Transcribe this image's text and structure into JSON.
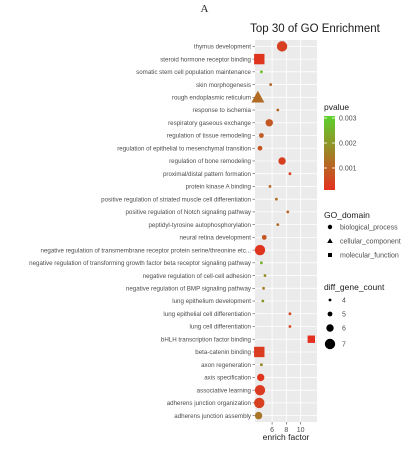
{
  "panel_label": "A",
  "chart_data": {
    "type": "scatter",
    "title": "Top 30 of GO Enrichment",
    "xlabel": "enrich factor",
    "ylabel": "",
    "xlim": [
      3.6,
      12.3
    ],
    "xticks": [
      6,
      8,
      10
    ],
    "grid": true,
    "legend_placement": "right",
    "terms": [
      {
        "term": "thymus development",
        "x": 7.4,
        "pvalue": 0.0004,
        "domain": "biological_process",
        "count": 7
      },
      {
        "term": "steroid hormone receptor binding",
        "x": 4.2,
        "pvalue": 0.0002,
        "domain": "molecular_function",
        "count": 7
      },
      {
        "term": "somatic stem cell population maintenance",
        "x": 4.5,
        "pvalue": 0.0028,
        "domain": "biological_process",
        "count": 4
      },
      {
        "term": "skin morphogenesis",
        "x": 5.8,
        "pvalue": 0.0011,
        "domain": "biological_process",
        "count": 4
      },
      {
        "term": "rough endoplasmic reticulum",
        "x": 4.0,
        "pvalue": 0.0012,
        "domain": "cellular_component",
        "count": 7
      },
      {
        "term": "response to ischemia",
        "x": 6.8,
        "pvalue": 0.0011,
        "domain": "biological_process",
        "count": 4
      },
      {
        "term": "respiratory gaseous exchange",
        "x": 5.6,
        "pvalue": 0.0008,
        "domain": "biological_process",
        "count": 6
      },
      {
        "term": "regulation of tissue remodeling",
        "x": 4.5,
        "pvalue": 0.0009,
        "domain": "biological_process",
        "count": 5
      },
      {
        "term": "regulation of epithelial to mesenchymal transition",
        "x": 4.3,
        "pvalue": 0.0008,
        "domain": "biological_process",
        "count": 5
      },
      {
        "term": "regulation of bone remodeling",
        "x": 7.4,
        "pvalue": 0.0004,
        "domain": "biological_process",
        "count": 6
      },
      {
        "term": "proximal/distal pattern formation",
        "x": 8.5,
        "pvalue": 0.0004,
        "domain": "biological_process",
        "count": 4
      },
      {
        "term": "protein kinase A binding",
        "x": 5.7,
        "pvalue": 0.0011,
        "domain": "biological_process",
        "count": 4
      },
      {
        "term": "positive regulation of striated muscle cell differentiation",
        "x": 6.6,
        "pvalue": 0.0012,
        "domain": "biological_process",
        "count": 4
      },
      {
        "term": "positive regulation of Notch signaling pathway",
        "x": 8.2,
        "pvalue": 0.001,
        "domain": "biological_process",
        "count": 4
      },
      {
        "term": "peptidyl-tyrosine autophosphorylation",
        "x": 6.8,
        "pvalue": 0.0012,
        "domain": "biological_process",
        "count": 4
      },
      {
        "term": "neural retina development",
        "x": 4.9,
        "pvalue": 0.0008,
        "domain": "biological_process",
        "count": 5
      },
      {
        "term": "negative regulation of transmembrane receptor protein serine/threonine etc...",
        "x": 4.3,
        "pvalue": 0.0002,
        "domain": "biological_process",
        "count": 7
      },
      {
        "term": "negative regulation of transforming growth factor beta receptor signaling pathway",
        "x": 4.5,
        "pvalue": 0.0025,
        "domain": "biological_process",
        "count": 4
      },
      {
        "term": "negative regulation of cell-cell adhesion",
        "x": 5.0,
        "pvalue": 0.0018,
        "domain": "biological_process",
        "count": 4
      },
      {
        "term": "negative regulation of BMP signaling pathway",
        "x": 4.8,
        "pvalue": 0.0015,
        "domain": "biological_process",
        "count": 4
      },
      {
        "term": "lung epithelium development",
        "x": 4.7,
        "pvalue": 0.002,
        "domain": "biological_process",
        "count": 4
      },
      {
        "term": "lung epithelial cell differentiation",
        "x": 8.5,
        "pvalue": 0.0005,
        "domain": "biological_process",
        "count": 4
      },
      {
        "term": "lung cell differentiation",
        "x": 8.5,
        "pvalue": 0.0005,
        "domain": "biological_process",
        "count": 4
      },
      {
        "term": "bHLH transcription factor binding",
        "x": 11.5,
        "pvalue": 0.0001,
        "domain": "molecular_function",
        "count": 6
      },
      {
        "term": "beta-catenin binding",
        "x": 4.2,
        "pvalue": 0.0003,
        "domain": "molecular_function",
        "count": 7
      },
      {
        "term": "axon regeneration",
        "x": 4.5,
        "pvalue": 0.0017,
        "domain": "biological_process",
        "count": 4
      },
      {
        "term": "axis specification",
        "x": 4.4,
        "pvalue": 0.0002,
        "domain": "biological_process",
        "count": 6
      },
      {
        "term": "associative learning",
        "x": 4.3,
        "pvalue": 0.0003,
        "domain": "biological_process",
        "count": 7
      },
      {
        "term": "adherens junction organization",
        "x": 4.2,
        "pvalue": 0.0004,
        "domain": "biological_process",
        "count": 7
      },
      {
        "term": "adherens junction assembly",
        "x": 4.1,
        "pvalue": 0.0014,
        "domain": "biological_process",
        "count": 6
      }
    ],
    "pvalue_legend": {
      "title": "pvalue",
      "ticks": [
        "0.003",
        "0.002",
        "0.001"
      ],
      "colors": {
        "high": "#5bd22d",
        "low": "#e4301f"
      }
    },
    "domain_legend": {
      "title": "GO_domain",
      "items": [
        {
          "key": "biological_process",
          "label": "biological_process"
        },
        {
          "key": "cellular_component",
          "label": "cellular_component"
        },
        {
          "key": "molecular_function",
          "label": "molecular_function"
        }
      ]
    },
    "size_legend": {
      "title": "diff_gene_count",
      "items": [
        "4",
        "5",
        "6",
        "7"
      ]
    }
  }
}
